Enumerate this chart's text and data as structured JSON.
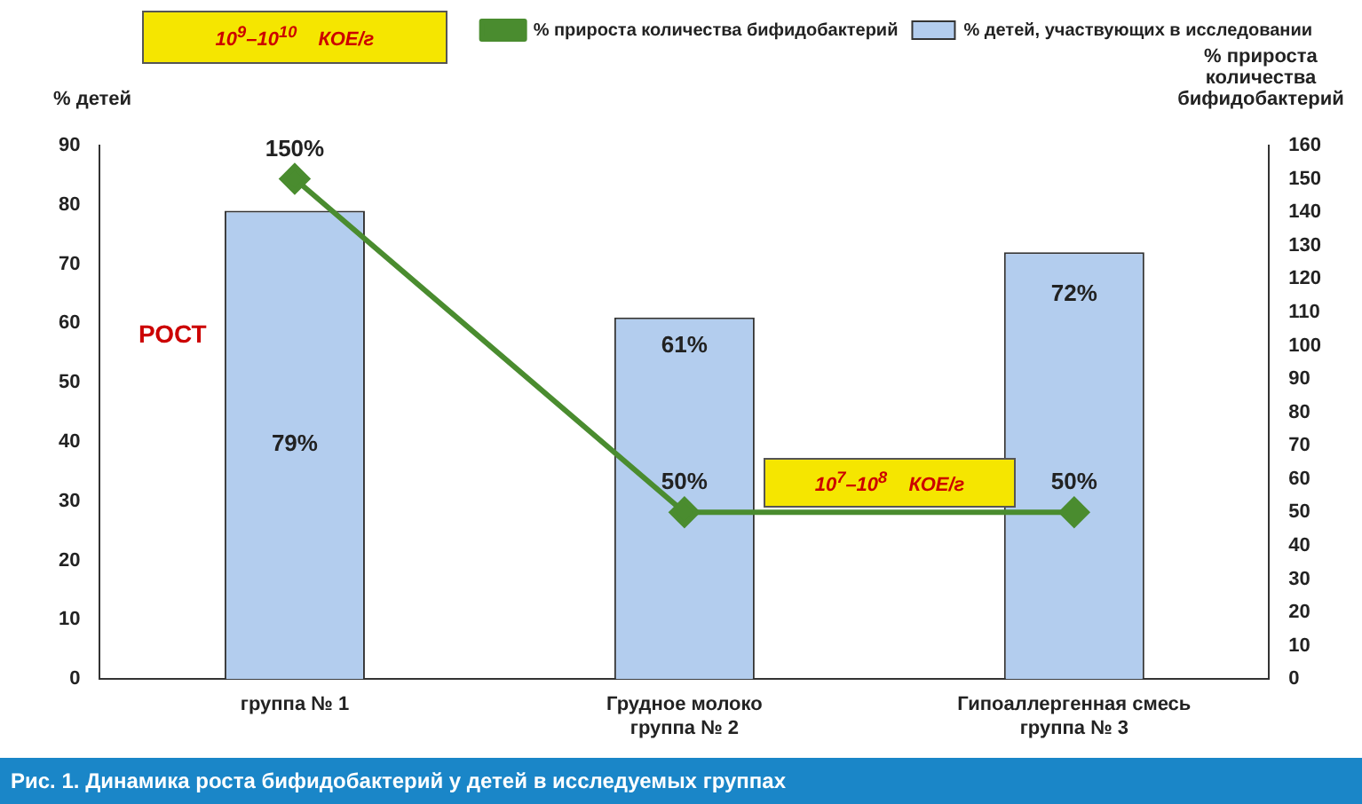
{
  "chart_data": {
    "type": "bar",
    "ylabel": "% детей",
    "y2label": "% прироста количества бифидобактерий",
    "categories": [
      "группа № 1",
      "Грудное молоко\nгруппа № 2",
      "Гипоаллергенная смесь\nгруппа № 3"
    ],
    "series": [
      {
        "name": "% детей, участвующих в исследовании",
        "type": "bar",
        "color": "#b3cdee",
        "values": [
          79,
          61,
          72
        ],
        "value_labels": [
          "79%",
          "61%",
          "72%"
        ]
      },
      {
        "name": "% прироста количества бифидобактерий",
        "type": "line",
        "axis": "y2",
        "color": "#4a8c2f",
        "values": [
          150,
          50,
          50
        ],
        "value_labels": [
          "150%",
          "50%",
          "50%"
        ]
      }
    ],
    "ylim": [
      0,
      90
    ],
    "yticks": [
      0,
      10,
      20,
      30,
      40,
      50,
      60,
      70,
      80,
      90
    ],
    "y2lim": [
      0,
      160
    ],
    "y2ticks": [
      0,
      10,
      20,
      30,
      40,
      50,
      60,
      70,
      80,
      90,
      100,
      110,
      120,
      130,
      140,
      150,
      160
    ],
    "legend": "top",
    "marker": "diamond",
    "grid": false,
    "annotations": [
      "10$^{9}$–10$^{10}$ КОЕ/г",
      "10$^{7}$–10$^{8}$ КОЕ/г",
      "РОСТ",
      "Рис. 1. Динамика роста бифидобактерий у детей в исследуемых группах"
    ]
  }
}
